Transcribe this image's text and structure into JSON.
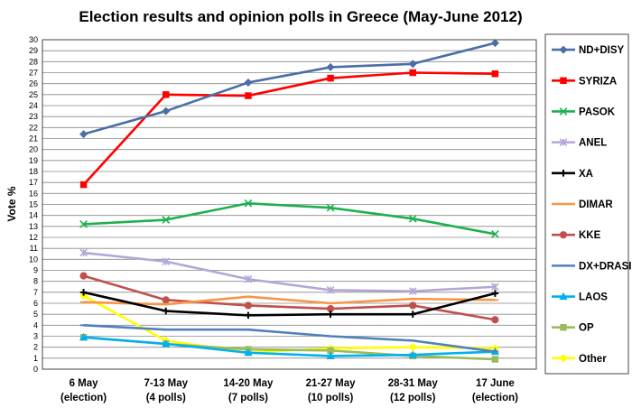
{
  "chart_data": {
    "type": "line",
    "title": "Election results and opinion polls in Greece (May-June 2012)",
    "ylabel": "Vote %",
    "xlabel": "",
    "ylim": [
      0,
      30
    ],
    "ytick_step": 1,
    "grid": "horizontal",
    "legend_position": "right",
    "categories": [
      [
        "6 May",
        "(election)"
      ],
      [
        "7-13 May",
        "(4 polls)"
      ],
      [
        "14-20 May",
        "(7 polls)"
      ],
      [
        "21-27 May",
        "(10 polls)"
      ],
      [
        "28-31 May",
        "(12 polls)"
      ],
      [
        "17 June",
        "(election)"
      ]
    ],
    "series": [
      {
        "name": "ND+DISY",
        "color": "#4A6FA5",
        "marker": "diamond",
        "values": [
          21.4,
          23.5,
          26.1,
          27.5,
          27.8,
          29.7
        ]
      },
      {
        "name": "SYRIZA",
        "color": "#FF0000",
        "marker": "square",
        "values": [
          16.8,
          25.0,
          24.9,
          26.5,
          27.0,
          26.9
        ]
      },
      {
        "name": "PASOK",
        "color": "#1DB04E",
        "marker": "x",
        "values": [
          13.2,
          13.6,
          15.1,
          14.7,
          13.7,
          12.3
        ]
      },
      {
        "name": "ANEL",
        "color": "#B4A7D6",
        "marker": "star",
        "values": [
          10.6,
          9.8,
          8.2,
          7.2,
          7.1,
          7.5
        ]
      },
      {
        "name": "XA",
        "color": "#000000",
        "marker": "plus",
        "values": [
          7.0,
          5.3,
          4.9,
          5.0,
          5.0,
          6.9
        ]
      },
      {
        "name": "DIMAR",
        "color": "#F79646",
        "marker": "dash",
        "values": [
          6.1,
          5.9,
          6.6,
          6.0,
          6.4,
          6.3
        ]
      },
      {
        "name": "KKE",
        "color": "#C0504D",
        "marker": "circle",
        "values": [
          8.5,
          6.3,
          5.8,
          5.5,
          5.8,
          4.5
        ]
      },
      {
        "name": "DX+DRASI",
        "color": "#4F81BD",
        "marker": "dash",
        "values": [
          4.0,
          3.6,
          3.6,
          3.0,
          2.6,
          1.6
        ]
      },
      {
        "name": "LAOS",
        "color": "#00B0F0",
        "marker": "triangle",
        "values": [
          2.9,
          2.3,
          1.5,
          1.2,
          1.3,
          1.6
        ]
      },
      {
        "name": "OP",
        "color": "#9BBB59",
        "marker": "square",
        "values": [
          2.9,
          2.3,
          1.8,
          1.7,
          1.2,
          0.9
        ]
      },
      {
        "name": "Other",
        "color": "#FFFF00",
        "marker": "diamond",
        "values": [
          6.7,
          2.6,
          1.5,
          1.9,
          2.0,
          1.9
        ]
      }
    ]
  }
}
